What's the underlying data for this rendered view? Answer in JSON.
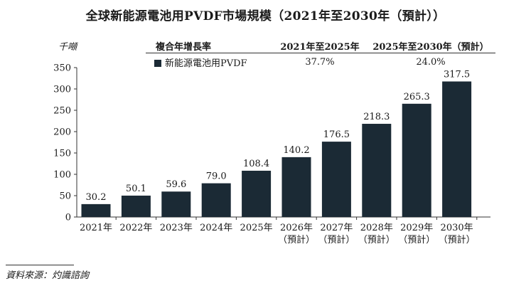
{
  "title": "全球新能源電池用PVDF市場規模（2021年至2030年（預計））",
  "unit_label": "千噸",
  "cagr_table": {
    "headers": [
      "複合年增長率",
      "2021年至2025年",
      "2025年至2030年（預計）"
    ],
    "row": {
      "label": "新能源電池用PVDF",
      "v1": "37.7%",
      "v2": "24.0%"
    }
  },
  "source": "資料來源：灼識諮詢",
  "colors": {
    "bar": "#1b2a35",
    "axis": "#333333"
  },
  "chart_data": {
    "type": "bar",
    "categories": [
      "2021年",
      "2022年",
      "2023年",
      "2024年",
      "2025年",
      "2026年",
      "2027年",
      "2028年",
      "2029年",
      "2030年"
    ],
    "category_notes": [
      "",
      "",
      "",
      "",
      "",
      "（預計）",
      "（預計）",
      "（預計）",
      "（預計）",
      "（預計）"
    ],
    "series": [
      {
        "name": "新能源電池用PVDF",
        "values": [
          30.2,
          50.1,
          59.6,
          79.0,
          108.4,
          140.2,
          176.5,
          218.3,
          265.3,
          317.5
        ]
      }
    ],
    "data_labels": [
      "30.2",
      "50.1",
      "59.6",
      "79.0",
      "108.4",
      "140.2",
      "176.5",
      "218.3",
      "265.3",
      "317.5"
    ],
    "yticks": [
      0,
      50,
      100,
      150,
      200,
      250,
      300,
      350
    ],
    "ylim": [
      0,
      350
    ],
    "ylabel": "千噸",
    "grid": false,
    "legend": "top"
  }
}
